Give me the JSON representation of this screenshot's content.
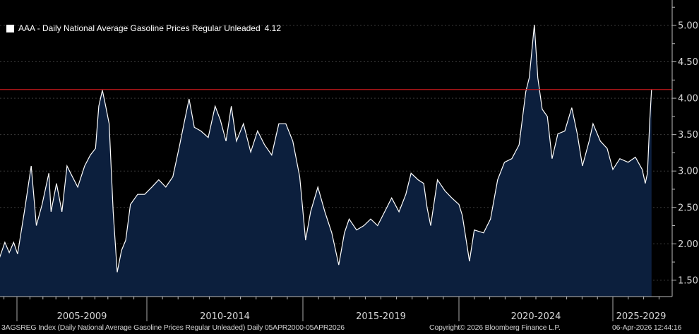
{
  "legend": {
    "label": "AAA - Daily National Average Gasoline Prices Regular Unleaded",
    "last_value": "4.12",
    "swatch_color": "#ffffff"
  },
  "footer": {
    "security": "3AGSREG Index (Daily National Average Gasoline Prices Regular Unleaded) Daily 05APR2000-05APR2026",
    "copyright": "Copyright© 2026 Bloomberg Finance L.P.",
    "timestamp": "06-Apr-2026 12:44:16"
  },
  "chart_data": {
    "type": "area",
    "title": "",
    "xlabel": "",
    "ylabel": "",
    "ylim": [
      1.3,
      5.3
    ],
    "y_ticks": [
      "1.50",
      "2.00",
      "2.50",
      "3.00",
      "3.50",
      "4.00",
      "4.50",
      "5.00"
    ],
    "x_period_labels": [
      "2005-2009",
      "2010-2014",
      "2015-2019",
      "2020-2024",
      "2025-2029"
    ],
    "grid": "horizontal dotted",
    "y_axis_side": "right",
    "reference_line": {
      "value": 4.12,
      "color": "#c0181c"
    },
    "colors": {
      "background": "#000000",
      "fill": "#0c1f3d",
      "line": "#ffffff",
      "text": "#d8d8d8"
    },
    "series": [
      {
        "name": "AAA - Daily National Average Gasoline Prices Regular Unleaded",
        "x": [
          "2004-05-01",
          "2004-07-15",
          "2004-09-15",
          "2004-11-15",
          "2005-01-10",
          "2005-04-15",
          "2005-07-20",
          "2005-10-01",
          "2005-12-20",
          "2006-03-25",
          "2006-04-25",
          "2006-07-10",
          "2006-09-25",
          "2006-12-05",
          "2007-01-25",
          "2007-05-05",
          "2007-08-10",
          "2007-10-30",
          "2008-01-10",
          "2008-02-25",
          "2008-04-15",
          "2008-06-01",
          "2008-07-20",
          "2008-09-15",
          "2008-11-10",
          "2009-01-10",
          "2009-03-10",
          "2009-05-15",
          "2009-08-25",
          "2009-12-01",
          "2010-03-01",
          "2010-05-20",
          "2010-08-10",
          "2010-11-01",
          "2011-01-20",
          "2011-03-20",
          "2011-05-10",
          "2011-07-10",
          "2011-09-25",
          "2011-12-20",
          "2012-03-10",
          "2012-05-10",
          "2012-07-15",
          "2012-09-15",
          "2012-11-15",
          "2013-02-05",
          "2013-05-01",
          "2013-07-20",
          "2013-10-10",
          "2014-01-01",
          "2014-03-25",
          "2014-06-15",
          "2014-09-05",
          "2014-11-25",
          "2015-02-01",
          "2015-04-01",
          "2015-06-25",
          "2015-09-15",
          "2015-12-05",
          "2016-02-25",
          "2016-05-01",
          "2016-06-25",
          "2016-09-20",
          "2016-12-15",
          "2017-03-05",
          "2017-05-25",
          "2017-08-15",
          "2017-11-05",
          "2018-01-30",
          "2018-04-20",
          "2018-06-20",
          "2018-09-10",
          "2018-11-15",
          "2018-12-25",
          "2019-02-05",
          "2019-04-25",
          "2019-07-20",
          "2019-10-10",
          "2020-01-01",
          "2020-02-10",
          "2020-05-05",
          "2020-07-01",
          "2020-10-20",
          "2021-01-10",
          "2021-04-05",
          "2021-06-25",
          "2021-09-20",
          "2021-12-15",
          "2022-03-05",
          "2022-04-15",
          "2022-06-14",
          "2022-07-25",
          "2022-09-15",
          "2022-11-15",
          "2023-01-10",
          "2023-03-20",
          "2023-06-10",
          "2023-09-01",
          "2023-11-05",
          "2024-01-05",
          "2024-03-25",
          "2024-05-10",
          "2024-08-05",
          "2024-10-25",
          "2025-01-01",
          "2025-03-25",
          "2025-07-01",
          "2025-09-25",
          "2025-12-15",
          "2026-01-20",
          "2026-02-15",
          "2026-03-15",
          "2026-04-05"
        ],
        "values": [
          1.81,
          2.02,
          1.88,
          2.02,
          1.86,
          2.44,
          3.07,
          2.25,
          2.54,
          2.97,
          2.44,
          2.83,
          2.44,
          3.07,
          2.97,
          2.78,
          3.07,
          3.22,
          3.31,
          3.89,
          4.11,
          3.89,
          3.65,
          2.44,
          1.61,
          1.91,
          2.05,
          2.54,
          2.68,
          2.68,
          2.78,
          2.88,
          2.78,
          2.92,
          3.36,
          3.7,
          3.99,
          3.6,
          3.55,
          3.46,
          3.89,
          3.7,
          3.41,
          3.89,
          3.41,
          3.65,
          3.26,
          3.55,
          3.36,
          3.22,
          3.65,
          3.65,
          3.41,
          2.92,
          2.05,
          2.44,
          2.78,
          2.44,
          2.15,
          1.71,
          2.15,
          2.34,
          2.19,
          2.25,
          2.34,
          2.25,
          2.44,
          2.63,
          2.44,
          2.68,
          2.97,
          2.88,
          2.83,
          2.49,
          2.25,
          2.88,
          2.73,
          2.63,
          2.54,
          2.39,
          1.76,
          2.19,
          2.15,
          2.34,
          2.88,
          3.12,
          3.17,
          3.36,
          4.09,
          4.28,
          5.01,
          4.28,
          3.85,
          3.75,
          3.17,
          3.51,
          3.55,
          3.87,
          3.51,
          3.07,
          3.41,
          3.65,
          3.41,
          3.31,
          3.02,
          3.17,
          3.12,
          3.19,
          3.02,
          2.83,
          2.97,
          3.7,
          4.12
        ]
      }
    ]
  }
}
